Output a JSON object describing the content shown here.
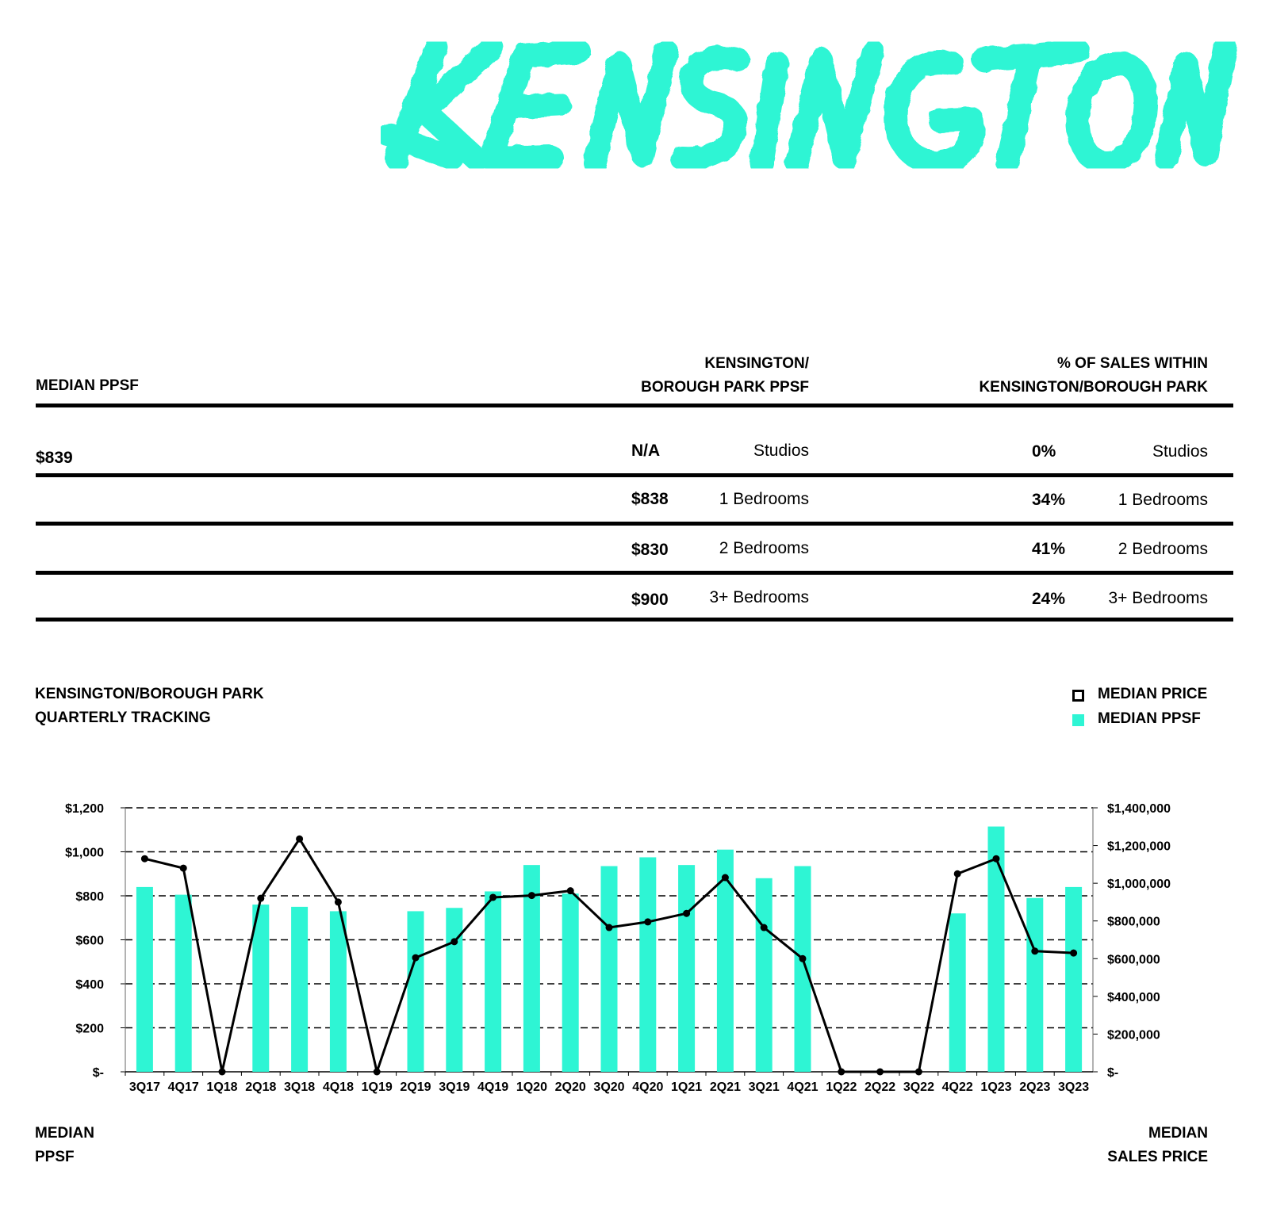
{
  "title": "KENSINGTON",
  "colors": {
    "accent": "#2ef5d4",
    "text": "#000000",
    "background": "#ffffff"
  },
  "table": {
    "left_header": "MEDIAN PPSF",
    "mid_header": [
      "KENSINGTON/",
      "BOROUGH PARK PPSF"
    ],
    "right_header": [
      "% OF SALES WITHIN",
      "KENSINGTON/BOROUGH PARK"
    ],
    "median_value": "$839",
    "rows": [
      {
        "ppsf": "N/A",
        "type": "Studios",
        "pct": "0%",
        "type2": "Studios"
      },
      {
        "ppsf": "$838",
        "type": "1 Bedrooms",
        "pct": "34%",
        "type2": "1 Bedrooms"
      },
      {
        "ppsf": "$830",
        "type": "2 Bedrooms",
        "pct": "41%",
        "type2": "2 Bedrooms"
      },
      {
        "ppsf": "$900",
        "type": "3+ Bedrooms",
        "pct": "24%",
        "type2": "3+ Bedrooms"
      }
    ]
  },
  "chart_section": {
    "title": [
      "KENSINGTON/BOROUGH PARK",
      "QUARTERLY TRACKING"
    ],
    "legend": {
      "price": "MEDIAN PRICE",
      "ppsf": "MEDIAN PPSF"
    },
    "left_axis_label": [
      "MEDIAN",
      "PPSF"
    ],
    "right_axis_label": [
      "MEDIAN",
      "SALES PRICE"
    ]
  },
  "chart_data": {
    "type": "bar",
    "categories": [
      "3Q17",
      "4Q17",
      "1Q18",
      "2Q18",
      "3Q18",
      "4Q18",
      "1Q19",
      "2Q19",
      "3Q19",
      "4Q19",
      "1Q20",
      "2Q20",
      "3Q20",
      "4Q20",
      "1Q21",
      "2Q21",
      "3Q21",
      "4Q21",
      "1Q22",
      "2Q22",
      "3Q22",
      "4Q22",
      "1Q23",
      "2Q23",
      "3Q23"
    ],
    "series": [
      {
        "name": "MEDIAN PPSF",
        "type": "bar",
        "axis": "left",
        "color": "#2ef5d4",
        "values": [
          840,
          805,
          0,
          760,
          750,
          730,
          0,
          730,
          745,
          820,
          940,
          810,
          935,
          975,
          940,
          1010,
          880,
          935,
          0,
          0,
          0,
          720,
          1115,
          790,
          840
        ]
      },
      {
        "name": "MEDIAN PRICE",
        "type": "line",
        "axis": "right",
        "color": "#000000",
        "values": [
          1130000,
          1080000,
          0,
          920000,
          1235000,
          900000,
          0,
          605000,
          690000,
          925000,
          935000,
          960000,
          765000,
          795000,
          840000,
          1030000,
          765000,
          600000,
          0,
          0,
          0,
          1050000,
          1130000,
          640000,
          630000
        ]
      }
    ],
    "y_left": {
      "ylim": [
        0,
        1200
      ],
      "ticks": [
        "$-",
        "$200",
        "$400",
        "$600",
        "$800",
        "$1,000",
        "$1,200"
      ]
    },
    "y_right": {
      "ylim": [
        0,
        1400000
      ],
      "ticks": [
        "$-",
        "$200,000",
        "$400,000",
        "$600,000",
        "$800,000",
        "$1,000,000",
        "$1,200,000",
        "$1,400,000"
      ]
    },
    "grid": true,
    "legend_position": "top-right"
  }
}
